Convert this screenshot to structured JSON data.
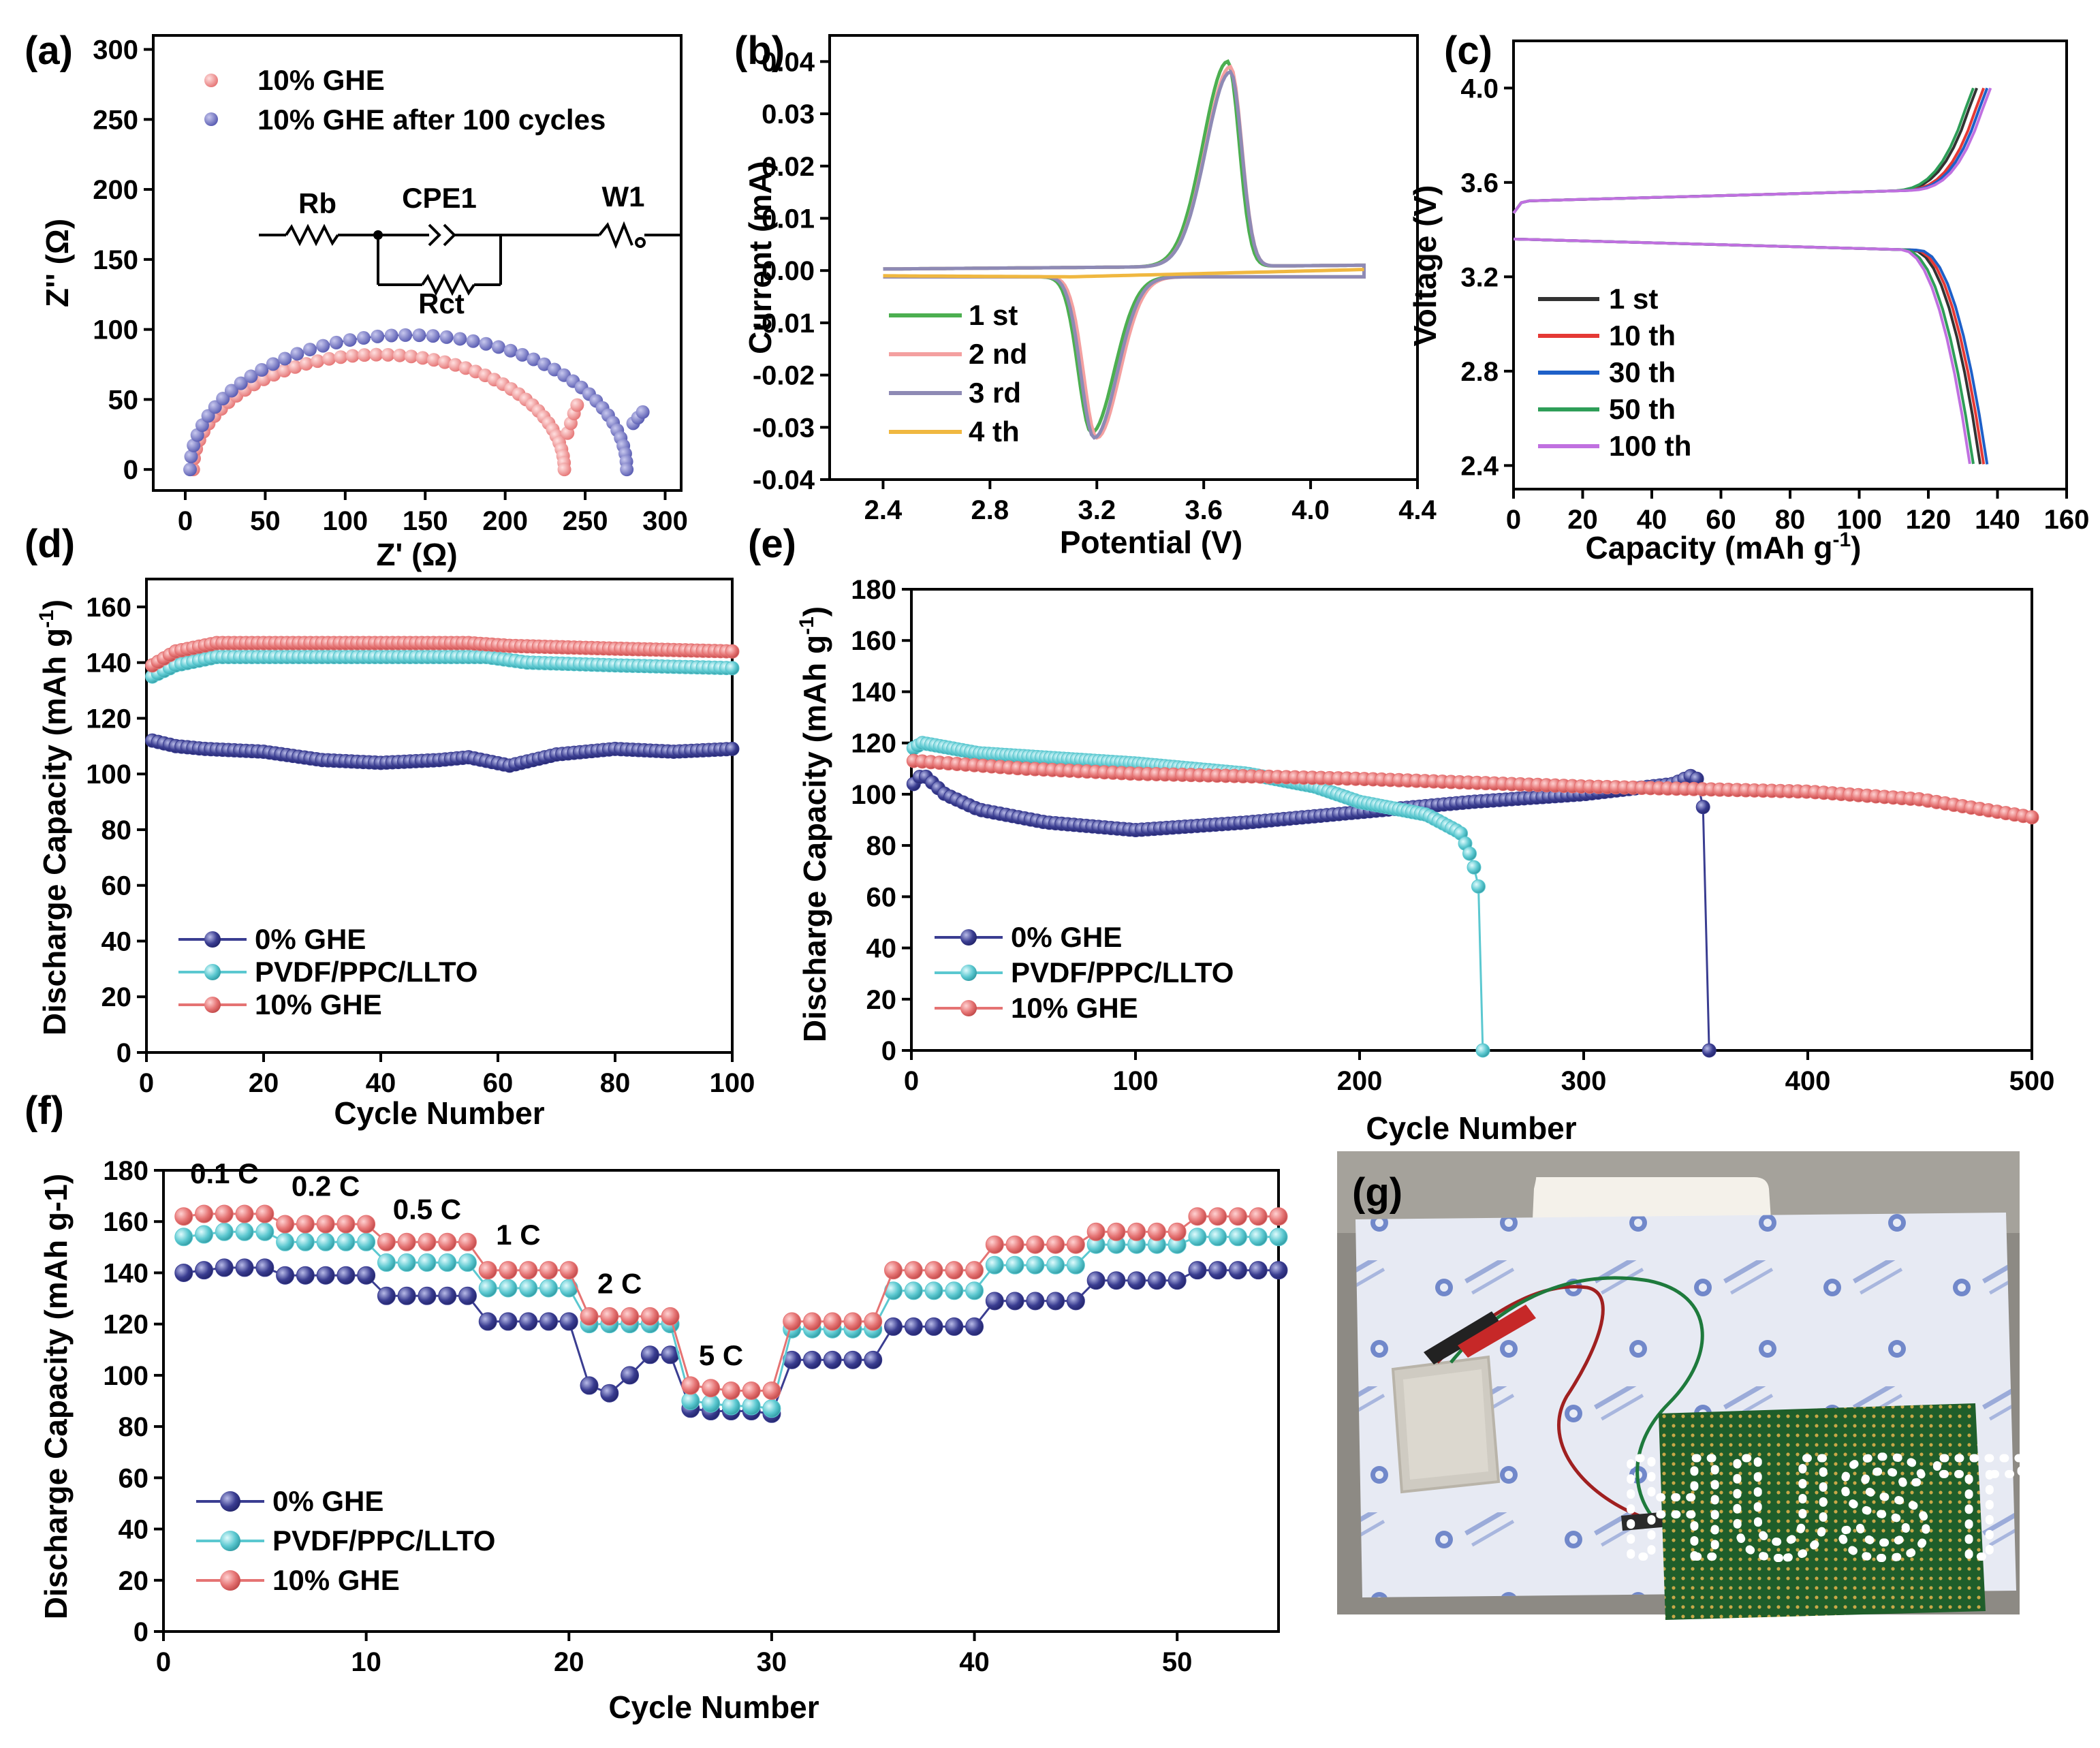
{
  "colors": {
    "red": "#e57373",
    "blue": "#3a3d91",
    "cyan": "#5bc8d0",
    "green": "#4caf50",
    "pink": "#f4a0a0",
    "purple": "#8e8ab5",
    "yellow": "#f0b840",
    "black": "#333333",
    "red2": "#e53935",
    "blue2": "#1e60c8",
    "green2": "#2e9e58",
    "violet": "#c070e0",
    "photo_board": "#e7eaf3",
    "photo_pcb": "#1f5e2a"
  },
  "chart_data": [
    {
      "id": "a",
      "panel_label": "(a)",
      "type": "scatter",
      "xlabel": "Z' (Ω)",
      "ylabel": "Z'' (Ω)",
      "xlim": [
        -20,
        310
      ],
      "ylim": [
        -15,
        310
      ],
      "xticks": [
        "0",
        "50",
        "100",
        "150",
        "200",
        "250",
        "300"
      ],
      "yticks": [
        "0",
        "50",
        "100",
        "150",
        "200",
        "250",
        "300"
      ],
      "legend": [
        "10% GHE",
        "10% GHE after 100 cycles"
      ],
      "circuit": {
        "rb": "Rb",
        "cpe": "CPE1",
        "w": "W1",
        "rct": "Rct"
      },
      "series": [
        {
          "name": "10% GHE",
          "color": "red",
          "arc": {
            "x0": 5,
            "x1": 237,
            "peak": 82,
            "tail": [
              [
                239,
                26
              ],
              [
                241,
                33
              ],
              [
                243,
                40
              ],
              [
                245,
                46
              ]
            ]
          }
        },
        {
          "name": "10% GHE after 100 cycles",
          "color": "blue",
          "arc": {
            "x0": 3,
            "x1": 276,
            "peak": 96,
            "tail": [
              [
                280,
                33
              ],
              [
                283,
                37
              ],
              [
                286,
                41
              ]
            ]
          }
        }
      ]
    },
    {
      "id": "b",
      "panel_label": "(b)",
      "type": "line",
      "xlabel": "Potential (V)",
      "ylabel": "Current (mA)",
      "xlim": [
        2.2,
        4.4
      ],
      "ylim": [
        -0.04,
        0.045
      ],
      "xticks": [
        "2.4",
        "2.8",
        "3.2",
        "3.6",
        "4.0",
        "4.4"
      ],
      "yticks": [
        "-0.04",
        "-0.03",
        "-0.02",
        "-0.01",
        "0.00",
        "0.01",
        "0.02",
        "0.03",
        "0.04"
      ],
      "legend": [
        "1 st",
        "2 nd",
        "3 rd",
        "4 th"
      ],
      "series": [
        {
          "name": "1 st",
          "color": "green",
          "peak_ox": [
            3.69,
            0.0395
          ],
          "peak_red": [
            3.18,
            -0.031
          ]
        },
        {
          "name": "2 nd",
          "color": "pink",
          "peak_ox": [
            3.7,
            0.0385
          ],
          "peak_red": [
            3.2,
            -0.032
          ]
        },
        {
          "name": "3 rd",
          "color": "purple",
          "peak_ox": [
            3.7,
            0.0375
          ],
          "peak_red": [
            3.19,
            -0.032
          ]
        },
        {
          "name": "4 th",
          "color": "yellow",
          "flat": [
            [
              3.1,
              -0.0012
            ],
            [
              4.2,
              0.0002
            ]
          ]
        }
      ]
    },
    {
      "id": "c",
      "panel_label": "(c)",
      "type": "line",
      "xlabel": "Capacity (mAh g",
      "xlabel_sup": "-1",
      "xlabel_end": ")",
      "ylabel": "Voltage (V)",
      "xlim": [
        0,
        160
      ],
      "ylim": [
        2.3,
        4.2
      ],
      "xticks": [
        "0",
        "20",
        "40",
        "60",
        "80",
        "100",
        "120",
        "140",
        "160"
      ],
      "yticks": [
        "2.4",
        "2.8",
        "3.2",
        "3.6",
        "4.0"
      ],
      "legend": [
        "1 st",
        "10 th",
        "30 th",
        "50 th",
        "100 th"
      ],
      "series": [
        {
          "name": "1 st",
          "color": "black",
          "charge_end": 134,
          "discharge_end": 135
        },
        {
          "name": "10 th",
          "color": "red2",
          "charge_end": 136,
          "discharge_end": 136
        },
        {
          "name": "30 th",
          "color": "blue2",
          "charge_end": 137,
          "discharge_end": 137
        },
        {
          "name": "50 th",
          "color": "green2",
          "charge_end": 133,
          "discharge_end": 133
        },
        {
          "name": "100 th",
          "color": "violet",
          "charge_end": 138,
          "discharge_end": 132
        }
      ]
    },
    {
      "id": "d",
      "panel_label": "(d)",
      "type": "scatter",
      "xlabel": "Cycle Number",
      "ylabel": "Discharge Capacity (mAh g",
      "ylabel_sup": "-1",
      "ylabel_end": ")",
      "xlim": [
        0,
        100
      ],
      "ylim": [
        0,
        170
      ],
      "xticks": [
        "0",
        "20",
        "40",
        "60",
        "80",
        "100"
      ],
      "yticks": [
        "0",
        "20",
        "40",
        "60",
        "80",
        "100",
        "120",
        "140",
        "160"
      ],
      "legend": [
        "0% GHE",
        "PVDF/PPC/LLTO",
        "10% GHE"
      ],
      "series": [
        {
          "name": "0% GHE",
          "color": "blue",
          "knots": [
            [
              1,
              112
            ],
            [
              5,
              110
            ],
            [
              10,
              109
            ],
            [
              20,
              108
            ],
            [
              30,
              105
            ],
            [
              40,
              104
            ],
            [
              50,
              105
            ],
            [
              55,
              106
            ],
            [
              62,
              103
            ],
            [
              70,
              107
            ],
            [
              80,
              109
            ],
            [
              90,
              108
            ],
            [
              100,
              109
            ]
          ]
        },
        {
          "name": "PVDF/PPC/LLTO",
          "color": "cyan",
          "knots": [
            [
              1,
              135
            ],
            [
              5,
              139
            ],
            [
              12,
              142
            ],
            [
              30,
              142
            ],
            [
              50,
              142
            ],
            [
              58,
              142
            ],
            [
              65,
              140
            ],
            [
              80,
              139
            ],
            [
              100,
              138
            ]
          ]
        },
        {
          "name": "10% GHE",
          "color": "red",
          "knots": [
            [
              1,
              139
            ],
            [
              5,
              144
            ],
            [
              12,
              147
            ],
            [
              30,
              147
            ],
            [
              50,
              147
            ],
            [
              55,
              147
            ],
            [
              62,
              146
            ],
            [
              80,
              145
            ],
            [
              100,
              144
            ]
          ]
        }
      ]
    },
    {
      "id": "e",
      "panel_label": "(e)",
      "type": "scatter",
      "xlabel": "Cycle Number",
      "ylabel": "Discharge Capacity (mAh g",
      "ylabel_sup": "-1",
      "ylabel_end": ")",
      "xlim": [
        0,
        500
      ],
      "ylim": [
        0,
        180
      ],
      "xticks": [
        "0",
        "100",
        "200",
        "300",
        "400",
        "500"
      ],
      "yticks": [
        "0",
        "20",
        "40",
        "60",
        "80",
        "100",
        "120",
        "140",
        "160",
        "180"
      ],
      "legend": [
        "0% GHE",
        "PVDF/PPC/LLTO",
        "10% GHE"
      ],
      "series": [
        {
          "name": "0% GHE",
          "color": "blue",
          "knots": [
            [
              1,
              104
            ],
            [
              5,
              108
            ],
            [
              15,
              100
            ],
            [
              30,
              94
            ],
            [
              60,
              89
            ],
            [
              100,
              86
            ],
            [
              150,
              89
            ],
            [
              200,
              93
            ],
            [
              250,
              97
            ],
            [
              300,
              100
            ],
            [
              340,
              104
            ],
            [
              350,
              108
            ],
            [
              355,
              88
            ],
            [
              356,
              0
            ]
          ]
        },
        {
          "name": "PVDF/PPC/LLTO",
          "color": "cyan",
          "knots": [
            [
              1,
              118
            ],
            [
              5,
              120
            ],
            [
              30,
              116
            ],
            [
              100,
              112
            ],
            [
              150,
              108
            ],
            [
              180,
              103
            ],
            [
              200,
              97
            ],
            [
              230,
              92
            ],
            [
              245,
              85
            ],
            [
              250,
              75
            ],
            [
              253,
              65
            ],
            [
              255,
              0
            ]
          ]
        },
        {
          "name": "10% GHE",
          "color": "red",
          "knots": [
            [
              1,
              113
            ],
            [
              50,
              110
            ],
            [
              100,
              108
            ],
            [
              200,
              106
            ],
            [
              300,
              103
            ],
            [
              400,
              101
            ],
            [
              450,
              98
            ],
            [
              500,
              91
            ]
          ]
        }
      ]
    },
    {
      "id": "f",
      "panel_label": "(f)",
      "type": "scatter",
      "xlabel": "Cycle Number",
      "ylabel": "Discharge Capacity (mAh g-1)",
      "xlim": [
        0,
        55
      ],
      "ylim": [
        0,
        180
      ],
      "xticks": [
        "0",
        "10",
        "20",
        "30",
        "40",
        "50"
      ],
      "yticks": [
        "0",
        "20",
        "40",
        "60",
        "80",
        "100",
        "120",
        "140",
        "160",
        "180"
      ],
      "legend": [
        "0% GHE",
        "PVDF/PPC/LLTO",
        "10% GHE"
      ],
      "rate_labels": [
        "0.1 C",
        "0.2 C",
        "0.5 C",
        "1 C",
        "2 C",
        "5 C"
      ],
      "series": [
        {
          "name": "0% GHE",
          "color": "blue",
          "values": [
            140,
            141,
            142,
            142,
            142,
            139,
            139,
            139,
            139,
            139,
            131,
            131,
            131,
            131,
            131,
            121,
            121,
            121,
            121,
            121,
            96,
            93,
            100,
            108,
            108,
            87,
            86,
            86,
            86,
            85,
            106,
            106,
            106,
            106,
            106,
            119,
            119,
            119,
            119,
            119,
            129,
            129,
            129,
            129,
            129,
            137,
            137,
            137,
            137,
            137,
            141,
            141,
            141,
            141,
            141
          ]
        },
        {
          "name": "PVDF/PPC/LLTO",
          "color": "cyan",
          "values": [
            154,
            155,
            156,
            156,
            156,
            152,
            152,
            152,
            152,
            152,
            144,
            144,
            144,
            144,
            144,
            134,
            134,
            134,
            134,
            134,
            120,
            120,
            120,
            120,
            120,
            90,
            89,
            88,
            88,
            87,
            118,
            118,
            118,
            118,
            118,
            133,
            133,
            133,
            133,
            133,
            143,
            143,
            143,
            143,
            143,
            151,
            151,
            151,
            151,
            151,
            154,
            154,
            154,
            154,
            154
          ]
        },
        {
          "name": "10% GHE",
          "color": "red",
          "values": [
            162,
            163,
            163,
            163,
            163,
            159,
            159,
            159,
            159,
            159,
            152,
            152,
            152,
            152,
            152,
            141,
            141,
            141,
            141,
            141,
            123,
            123,
            123,
            123,
            123,
            96,
            95,
            94,
            94,
            94,
            121,
            121,
            121,
            121,
            121,
            141,
            141,
            141,
            141,
            141,
            151,
            151,
            151,
            151,
            151,
            156,
            156,
            156,
            156,
            156,
            162,
            162,
            162,
            162,
            162
          ]
        }
      ]
    }
  ],
  "photo": {
    "panel_label": "(g)",
    "text": "HUST"
  }
}
